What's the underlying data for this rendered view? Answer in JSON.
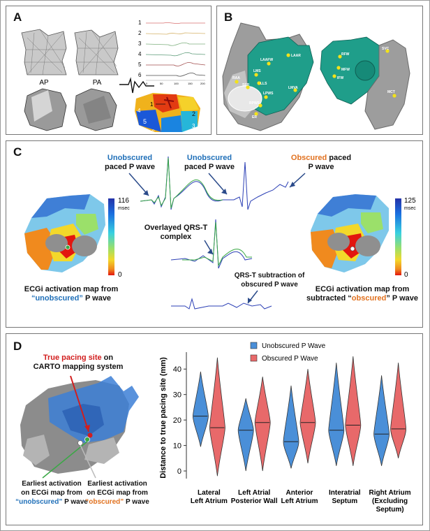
{
  "panel_a": {
    "label": "A",
    "view_ap": "AP",
    "view_pa": "PA",
    "trace_numbers": [
      "1",
      "2",
      "3",
      "4",
      "5",
      "6"
    ],
    "trace_axis_ticks": [
      "0",
      "50",
      "100",
      "150",
      "200"
    ],
    "map_regions": [
      "1",
      "2",
      "3",
      "4",
      "5",
      "6"
    ]
  },
  "panel_b": {
    "label": "B",
    "landmarks_left": [
      "RAA",
      "LAAR",
      "LAAFW",
      "LMS",
      "LLS",
      "SER",
      "LPWS",
      "LMVA",
      "RPWS",
      "ER"
    ],
    "landmarks_right": [
      "SVC",
      "RFW",
      "MFW",
      "IFW",
      "MCT"
    ]
  },
  "panel_c": {
    "label": "C",
    "ann1_a": "Unobscured",
    "ann1_b": "paced P wave",
    "ann2_a": "Unobscured",
    "ann2_b": "paced P wave",
    "ann3_a": "Obscured",
    "ann3_b": " paced",
    "ann3_c": "P wave",
    "ann4_a": "Overlayed QRS-T",
    "ann4_b": "complex",
    "ann5_a": "QRS-T subtraction of",
    "ann5_b": "obscured P wave",
    "scale_left_max": "116",
    "scale_left_unit": "msec",
    "scale_left_min": "0",
    "scale_right_max": "125",
    "scale_right_unit": "msec",
    "scale_right_min": "0",
    "cap_left_1": "ECGi activation map from",
    "cap_left_2a": "“unobscured”",
    "cap_left_2b": " P wave",
    "cap_right_1": "ECGi activation map from",
    "cap_right_2a": "subtracted “",
    "cap_right_2b": "obscured",
    "cap_right_2c": "” P wave"
  },
  "panel_d": {
    "label": "D",
    "true_site_a": "True pacing site",
    "true_site_b": " on",
    "true_site_c": "CARTO mapping system",
    "earliest_unobs_1": "Earliest activation",
    "earliest_unobs_2": "on ECGi map from",
    "earliest_unobs_3a": "“unobscured”",
    "earliest_unobs_3b": " P wave",
    "earliest_obs_1": "Earliest activation",
    "earliest_obs_2": "on ECGi map from",
    "earliest_obs_3a": "“obscured”",
    "earliest_obs_3b": " P wave"
  },
  "colors": {
    "unobscured": "#4a8fd8",
    "obscured": "#e8696a",
    "trace_blue": "#2b3fb5",
    "trace_green": "#3aa845",
    "teal": "#1f9e8a"
  },
  "chart_data": {
    "type": "violin",
    "ylabel": "Distance to true pacing site (mm)",
    "ylim": [
      -3,
      45
    ],
    "yticks": [
      0,
      10,
      20,
      30,
      40
    ],
    "categories": [
      {
        "line1": "Lateral",
        "line2": "Left Atrium",
        "line3": ""
      },
      {
        "line1": "Left Atrial",
        "line2": "Posterior Wall",
        "line3": ""
      },
      {
        "line1": "Anterior",
        "line2": "Left Atrium",
        "line3": ""
      },
      {
        "line1": "Interatrial",
        "line2": "Septum",
        "line3": ""
      },
      {
        "line1": "Right Atrium",
        "line2": "(Excluding",
        "line3": "Septum)"
      }
    ],
    "legend": [
      "Unobscured P Wave",
      "Obscured P Wave"
    ],
    "legend_position": "top-right",
    "series": [
      {
        "name": "Unobscured P Wave",
        "color": "#4a8fd8",
        "median": [
          21.5,
          16,
          11.5,
          16,
          14.5
        ],
        "min": [
          9.5,
          0,
          1,
          2,
          2
        ],
        "max": [
          39,
          28.5,
          33.5,
          42.5,
          37.5
        ]
      },
      {
        "name": "Obscured P Wave",
        "color": "#e8696a",
        "median": [
          17,
          19,
          19,
          18,
          16.5
        ],
        "min": [
          -2,
          0,
          3,
          2,
          5
        ],
        "max": [
          44.5,
          37,
          40,
          45,
          42.5
        ]
      }
    ]
  }
}
